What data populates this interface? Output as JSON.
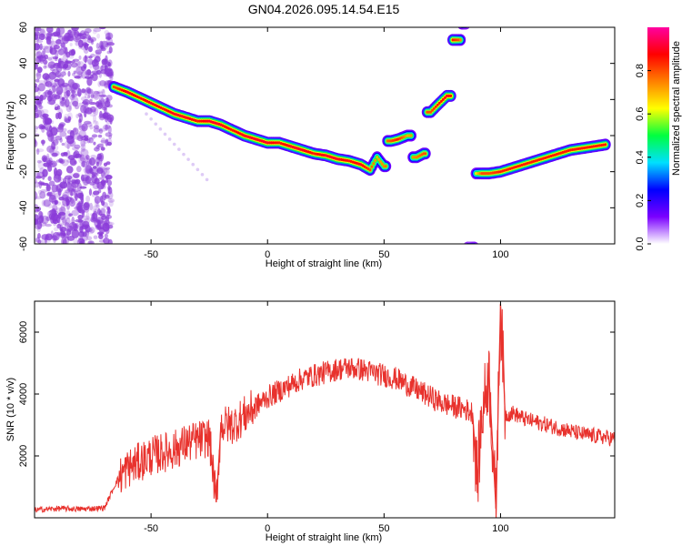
{
  "title": "GN04.2026.095.14.54.E15",
  "colors": {
    "snr_line": "#e8322d",
    "scatter_noise": "#8a3bd8",
    "frame": "#000000"
  },
  "chart_data": [
    {
      "type": "heatmap",
      "xlabel": "Height of straight line (km)",
      "ylabel": "Frequency (Hz)",
      "xlim": [
        -100,
        149
      ],
      "ylim": [
        -60,
        60
      ],
      "x_ticks": [
        -50,
        0,
        50,
        100
      ],
      "x_tick_labels": [
        "-50",
        "0",
        "50",
        "100"
      ],
      "y_ticks": [
        -60,
        -40,
        -20,
        0,
        20,
        40,
        60
      ],
      "y_tick_labels": [
        "-60",
        "-40",
        "-20",
        "0",
        "20",
        "40",
        "60"
      ],
      "colorbar": {
        "label": "Normalized spectral amplitude",
        "range": [
          0.0,
          1.0
        ],
        "ticks": [
          0.0,
          0.2,
          0.4,
          0.6,
          0.8
        ],
        "tick_labels": [
          "0.0",
          "0.2",
          "0.4",
          "0.6",
          "0.8"
        ],
        "colormap": [
          "#ffffff",
          "#7a00ff",
          "#0000ff",
          "#00e0ff",
          "#00ff40",
          "#ffff00",
          "#ff8000",
          "#ff0000",
          "#ff00a0"
        ]
      },
      "noise_region_x": [
        -100,
        -67
      ],
      "series": [
        {
          "x": [
            -66,
            -60,
            -55,
            -50,
            -45,
            -40,
            -35,
            -30,
            -25,
            -20,
            -15,
            -10,
            -5,
            0,
            5,
            10,
            15,
            20,
            25,
            30,
            35,
            40,
            44,
            47,
            50,
            53,
            56,
            60,
            64,
            67,
            70,
            73,
            77,
            82,
            85,
            87,
            92,
            95,
            100,
            105,
            110,
            115,
            120,
            125,
            130,
            135,
            140,
            145
          ],
          "y": [
            27,
            24,
            21,
            18,
            15,
            12,
            10,
            8,
            8,
            6,
            3,
            0,
            -2,
            -4,
            -4,
            -6,
            -8,
            -10,
            -11,
            -13,
            -14,
            -16,
            -19,
            -12,
            -17,
            -3,
            -2,
            0,
            -12,
            -10,
            13,
            17,
            22,
            53,
            62,
            -62,
            -21,
            -21,
            -20,
            -18,
            -16,
            -14,
            -12,
            -10,
            -8,
            -7,
            -6,
            -5
          ],
          "amplitude": [
            0.8,
            0.9,
            0.85,
            0.9,
            0.85,
            0.9,
            0.9,
            0.85,
            0.9,
            0.9,
            0.85,
            0.9,
            0.9,
            0.9,
            0.85,
            0.9,
            0.9,
            0.85,
            0.9,
            0.9,
            0.85,
            0.9,
            0.8,
            0.7,
            0.75,
            0.8,
            0.85,
            0.7,
            0.75,
            0.8,
            0.8,
            0.85,
            0.9,
            0.8,
            0.6,
            0.5,
            0.8,
            0.8,
            0.85,
            0.85,
            0.85,
            0.85,
            0.85,
            0.85,
            0.85,
            0.85,
            0.85,
            0.85
          ]
        }
      ]
    },
    {
      "type": "line",
      "xlabel": "Height of straight line (km)",
      "ylabel": "SNR (10 * v/v)",
      "xlim": [
        -100,
        149
      ],
      "ylim": [
        0,
        7000
      ],
      "x_ticks": [
        -50,
        0,
        50,
        100
      ],
      "x_tick_labels": [
        "-50",
        "0",
        "50",
        "100"
      ],
      "y_ticks": [
        2000,
        4000,
        6000
      ],
      "y_tick_labels": [
        "2000",
        "4000",
        "6000"
      ],
      "series": [
        {
          "x": [
            -100,
            -90,
            -80,
            -70,
            -64,
            -60,
            -55,
            -50,
            -45,
            -40,
            -35,
            -30,
            -25,
            -22,
            -20,
            -15,
            -10,
            -5,
            0,
            5,
            10,
            15,
            20,
            25,
            30,
            35,
            40,
            45,
            50,
            55,
            60,
            65,
            70,
            75,
            80,
            85,
            88,
            90,
            92,
            95,
            98,
            100,
            102,
            105,
            110,
            115,
            120,
            125,
            130,
            135,
            140,
            145,
            149
          ],
          "y": [
            250,
            300,
            280,
            320,
            1300,
            1600,
            1800,
            2000,
            2100,
            2200,
            2400,
            2500,
            2600,
            500,
            3000,
            3000,
            3300,
            3600,
            3900,
            4100,
            4300,
            4500,
            4600,
            4700,
            4800,
            4850,
            4800,
            4700,
            4600,
            4500,
            4300,
            4100,
            3900,
            3700,
            3600,
            3500,
            3400,
            1200,
            3300,
            4700,
            300,
            6900,
            3300,
            3400,
            3200,
            3100,
            3000,
            2900,
            2800,
            2700,
            2650,
            2600,
            2550
          ]
        }
      ]
    }
  ]
}
